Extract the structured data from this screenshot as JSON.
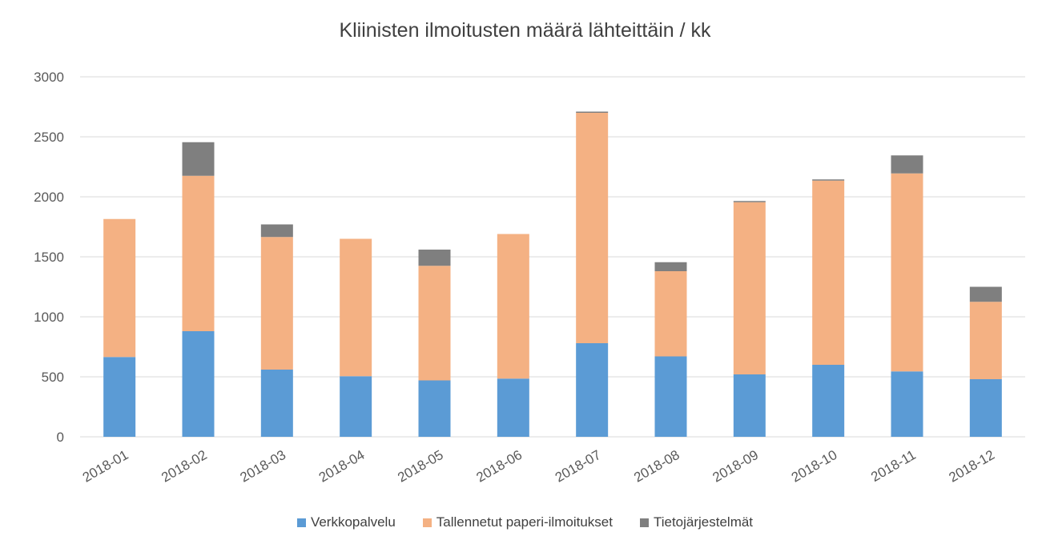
{
  "chart_data": {
    "type": "bar",
    "stacked": true,
    "title": "Kliinisten ilmoitusten määrä lähteittäin / kk",
    "xlabel": "",
    "ylabel": "",
    "ylim": [
      0,
      3000
    ],
    "yticks": [
      0,
      500,
      1000,
      1500,
      2000,
      2500,
      3000
    ],
    "grid": true,
    "legend_position": "bottom",
    "categories": [
      "2018-01",
      "2018-02",
      "2018-03",
      "2018-04",
      "2018-05",
      "2018-06",
      "2018-07",
      "2018-08",
      "2018-09",
      "2018-10",
      "2018-11",
      "2018-12"
    ],
    "series": [
      {
        "name": "Verkkopalvelu",
        "color": "#5B9BD5",
        "values": [
          665,
          880,
          560,
          505,
          470,
          485,
          780,
          670,
          520,
          600,
          545,
          480
        ]
      },
      {
        "name": "Tallennetut paperi-ilmoitukset",
        "color": "#F4B183",
        "values": [
          1150,
          1295,
          1105,
          1145,
          955,
          1205,
          1920,
          710,
          1435,
          1535,
          1650,
          645
        ]
      },
      {
        "name": "Tietojärjestelmät",
        "color": "#7F7F7F",
        "values": [
          0,
          280,
          105,
          0,
          135,
          0,
          10,
          75,
          10,
          10,
          150,
          125
        ]
      }
    ]
  }
}
